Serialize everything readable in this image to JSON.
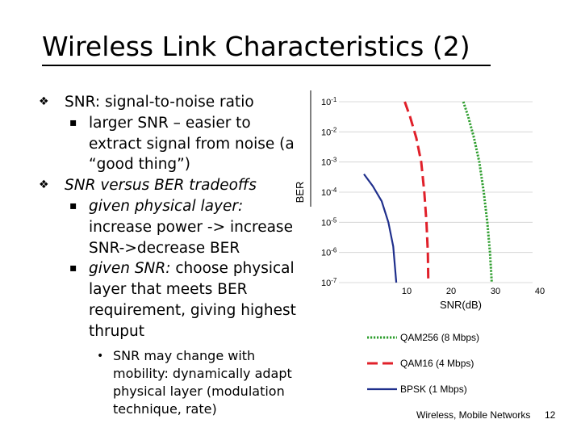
{
  "slide": {
    "title": "Wireless Link Characteristics (2)",
    "bullets": [
      {
        "text": "SNR: signal-to-noise ratio",
        "subs": [
          "larger SNR – easier to extract signal from noise (a “good thing”)"
        ]
      },
      {
        "text": "SNR versus BER tradeoffs",
        "subs": [
          {
            "lead": "given physical layer:",
            "rest": " increase power -> increase SNR->decrease BER"
          },
          {
            "lead": "given SNR:",
            "rest": " choose physical layer that meets BER requirement, giving highest thruput"
          }
        ]
      }
    ],
    "sub_sub": "SNR may change with mobility: dynamically adapt physical layer (modulation technique, rate)",
    "bullet_glyph": "❖",
    "sub_glyph": "▪",
    "subsub_glyph": "•",
    "footer": "Wireless, Mobile Networks",
    "page_number": "12"
  },
  "chart_data": {
    "type": "line",
    "xlabel": "SNR(dB)",
    "ylabel": "BER",
    "x_ticks": [
      10,
      20,
      30,
      40
    ],
    "xlim": [
      0,
      40
    ],
    "y_ticks": [
      {
        "base": "10",
        "exp": "-1"
      },
      {
        "base": "10",
        "exp": "-2"
      },
      {
        "base": "10",
        "exp": "-3"
      },
      {
        "base": "10",
        "exp": "-4"
      },
      {
        "base": "10",
        "exp": "-5"
      },
      {
        "base": "10",
        "exp": "-6"
      },
      {
        "base": "10",
        "exp": "-7"
      }
    ],
    "ylim_exp": [
      -7,
      -1
    ],
    "y_scale": "log",
    "grid": "horizontal",
    "legend_position": "bottom",
    "series": [
      {
        "name": "QAM256 (8 Mbps)",
        "color": "#2e9e2e",
        "dash": "dotted",
        "points": [
          [
            24.4,
            -1.0
          ],
          [
            25.5,
            -1.5
          ],
          [
            26.8,
            -2.2
          ],
          [
            28.0,
            -3.0
          ],
          [
            29.0,
            -4.0
          ],
          [
            29.8,
            -5.0
          ],
          [
            30.4,
            -6.0
          ],
          [
            30.8,
            -7.0
          ]
        ]
      },
      {
        "name": "QAM16 (4 Mbps)",
        "color": "#e0202a",
        "dash": "dashed",
        "points": [
          [
            11.2,
            -1.0
          ],
          [
            12.4,
            -1.5
          ],
          [
            13.8,
            -2.2
          ],
          [
            14.9,
            -3.0
          ],
          [
            15.6,
            -4.0
          ],
          [
            16.1,
            -5.0
          ],
          [
            16.4,
            -6.0
          ],
          [
            16.5,
            -7.0
          ]
        ]
      },
      {
        "name": "BPSK (1 Mbps)",
        "color": "#1f2f8c",
        "dash": "solid",
        "points": [
          [
            2.0,
            -3.4
          ],
          [
            4.0,
            -3.8
          ],
          [
            6.0,
            -4.3
          ],
          [
            7.5,
            -5.0
          ],
          [
            8.6,
            -5.8
          ],
          [
            9.3,
            -7.0
          ]
        ]
      }
    ]
  }
}
